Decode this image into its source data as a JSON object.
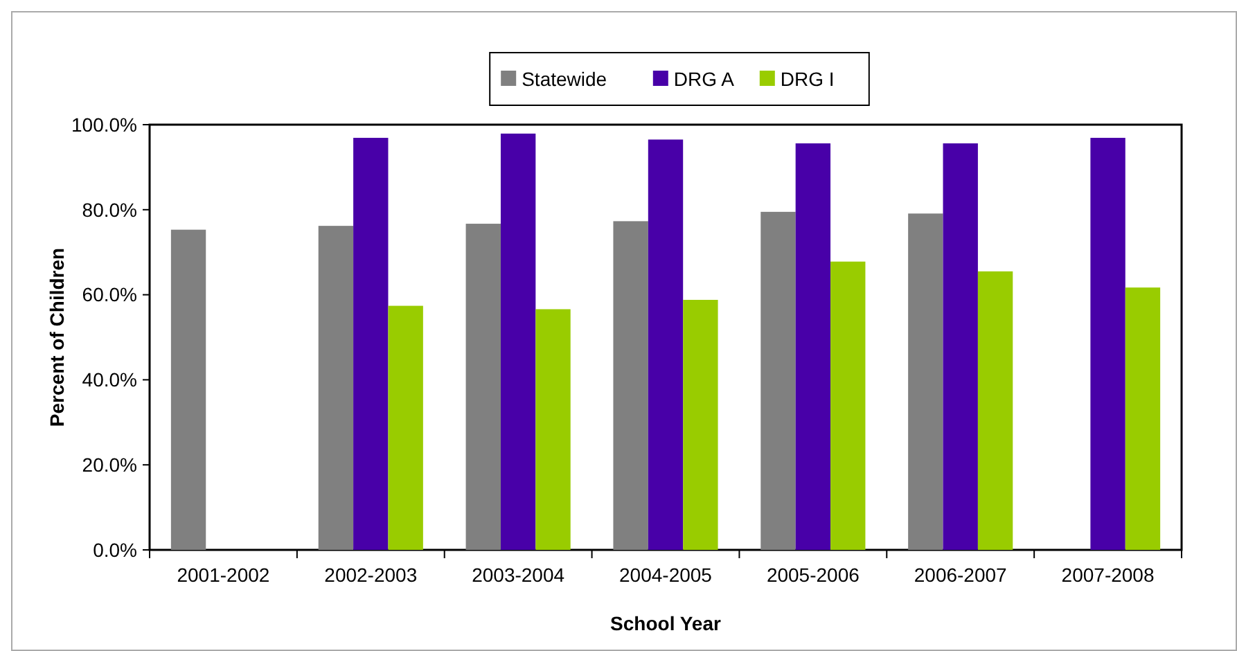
{
  "chart_data": {
    "type": "bar",
    "xlabel": "School Year",
    "ylabel": "Percent of Children",
    "categories": [
      "2001-2002",
      "2002-2003",
      "2003-2004",
      "2004-2005",
      "2005-2006",
      "2006-2007",
      "2007-2008"
    ],
    "series": [
      {
        "name": "Statewide",
        "color": "#808080",
        "values": [
          75.3,
          76.2,
          76.7,
          77.3,
          79.5,
          79.1,
          null
        ]
      },
      {
        "name": "DRG A",
        "color": "#4800a8",
        "values": [
          null,
          96.9,
          97.9,
          96.5,
          95.6,
          95.6,
          96.9
        ]
      },
      {
        "name": "DRG I",
        "color": "#99cc00",
        "values": [
          null,
          57.4,
          56.6,
          58.8,
          67.8,
          65.5,
          61.7
        ]
      }
    ],
    "ylim": [
      0,
      100
    ],
    "yticks": [
      {
        "value": 0,
        "label": "0.0%"
      },
      {
        "value": 20,
        "label": "20.0%"
      },
      {
        "value": 40,
        "label": "40.0%"
      },
      {
        "value": 60,
        "label": "60.0%"
      },
      {
        "value": 80,
        "label": "80.0%"
      },
      {
        "value": 100,
        "label": "100.0%"
      }
    ],
    "grid": false,
    "legend": "top"
  }
}
